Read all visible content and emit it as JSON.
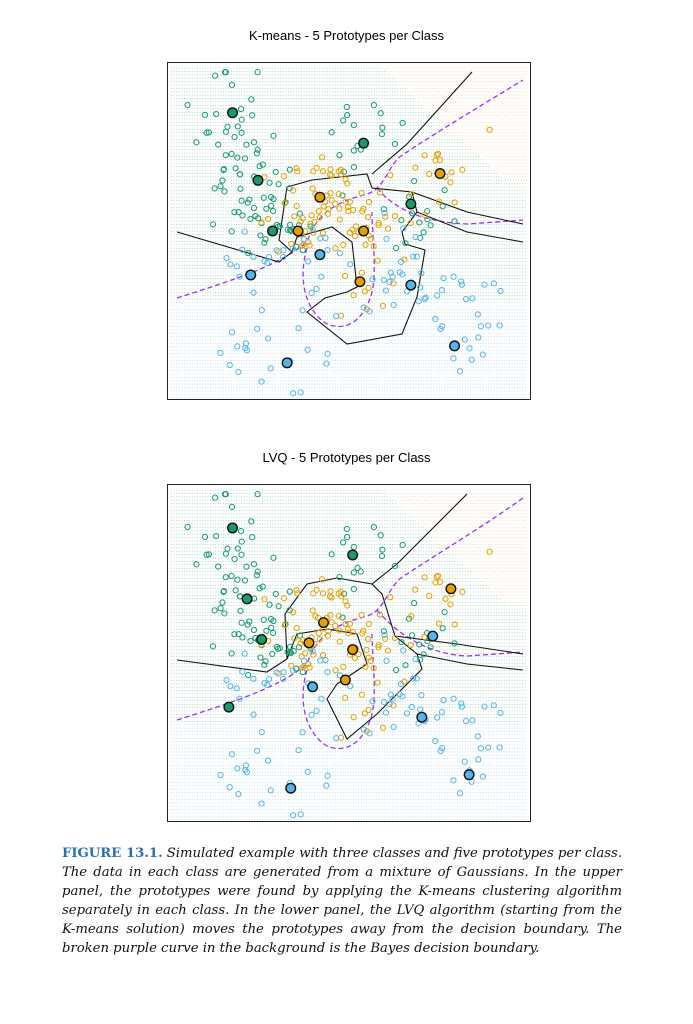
{
  "panels": [
    {
      "title": "K-means - 5 Prototypes  per Class",
      "prototypes": {
        "green": [
          [
            0.18,
            0.15
          ],
          [
            0.54,
            0.24
          ],
          [
            0.25,
            0.35
          ],
          [
            0.67,
            0.42
          ],
          [
            0.29,
            0.5
          ]
        ],
        "orange": [
          [
            0.42,
            0.4
          ],
          [
            0.36,
            0.5
          ],
          [
            0.54,
            0.5
          ],
          [
            0.75,
            0.33
          ],
          [
            0.53,
            0.65
          ]
        ],
        "blue": [
          [
            0.23,
            0.63
          ],
          [
            0.42,
            0.57
          ],
          [
            0.67,
            0.66
          ],
          [
            0.79,
            0.84
          ],
          [
            0.33,
            0.89
          ]
        ]
      }
    },
    {
      "title": "LVQ - 5 Prototypes per Class",
      "prototypes": {
        "green": [
          [
            0.18,
            0.13
          ],
          [
            0.51,
            0.21
          ],
          [
            0.22,
            0.34
          ],
          [
            0.26,
            0.46
          ],
          [
            0.17,
            0.66
          ]
        ],
        "orange": [
          [
            0.43,
            0.41
          ],
          [
            0.39,
            0.47
          ],
          [
            0.51,
            0.49
          ],
          [
            0.78,
            0.31
          ],
          [
            0.49,
            0.58
          ]
        ],
        "blue": [
          [
            0.4,
            0.6
          ],
          [
            0.73,
            0.45
          ],
          [
            0.7,
            0.69
          ],
          [
            0.83,
            0.86
          ],
          [
            0.34,
            0.9
          ]
        ]
      }
    }
  ],
  "caption": {
    "label": "FIGURE 13.1.",
    "text": "Simulated example with three classes and five prototypes per class. The data in each class are generated from a mixture of Gaussians. In the upper panel, the prototypes were found by applying the K-means clustering algorithm separately in each class. In the lower panel, the LVQ algorithm (starting from the K-means solution) moves the prototypes away from the decision boundary. The broken purple curve in the background is the Bayes decision boundary."
  },
  "colors": {
    "green": "#1a9a6c",
    "orange": "#e69f00",
    "blue": "#56b4e9",
    "purple": "#9b30ff"
  }
}
